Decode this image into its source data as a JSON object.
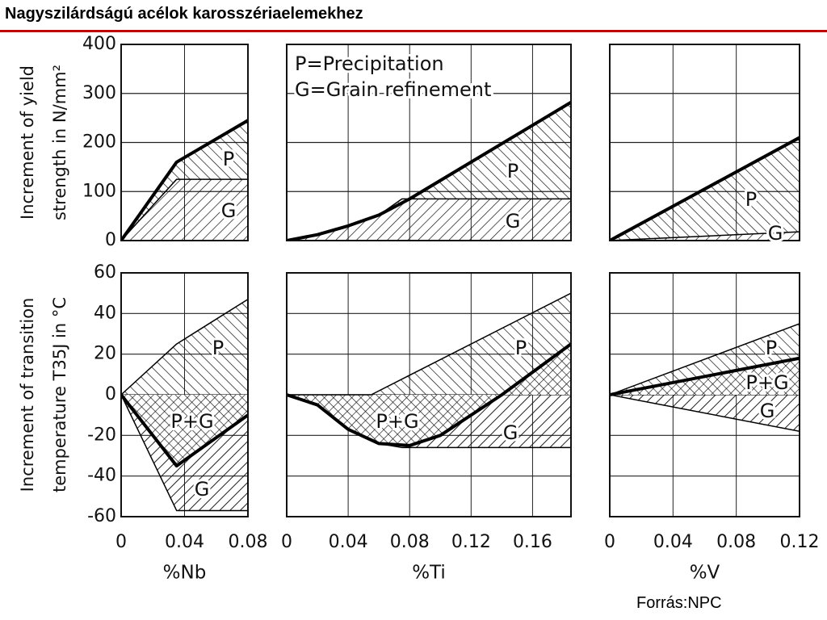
{
  "title": "Nagyszilárdságú acélok karosszériaelemekhez",
  "source": "Forrás:NPC",
  "chart_data": [
    {
      "type": "area",
      "ylabel": [
        "Increment of yield",
        "strength in N/mm²"
      ],
      "xlim": [
        0,
        0.08
      ],
      "xticks": [
        0,
        0.04,
        0.08
      ],
      "ylim": [
        0,
        400
      ],
      "yticks": [
        0,
        100,
        200,
        300,
        400
      ],
      "grid": true,
      "series": [
        {
          "x": [
            0,
            0.035,
            0.08
          ],
          "values": [
            0,
            160,
            245
          ],
          "color": "#000000",
          "line_width": 4,
          "hatch": "back"
        },
        {
          "x": [
            0,
            0.035,
            0.08
          ],
          "values": [
            0,
            125,
            125
          ],
          "color": "#000000",
          "line_width": 1.5,
          "hatch": "fwd"
        }
      ],
      "annotations": [
        "P",
        "G"
      ]
    },
    {
      "type": "area",
      "xlim": [
        0,
        0.185
      ],
      "xticks": [
        0,
        0.04,
        0.08,
        0.12,
        0.16
      ],
      "ylim": [
        0,
        400
      ],
      "yticks": [
        0,
        100,
        200,
        300,
        400
      ],
      "grid": true,
      "series": [
        {
          "x": [
            0,
            0.02,
            0.04,
            0.06,
            0.08,
            0.185
          ],
          "values": [
            0,
            12,
            30,
            52,
            85,
            282
          ],
          "color": "#000000",
          "line_width": 4,
          "hatch": "back"
        },
        {
          "x": [
            0,
            0.02,
            0.04,
            0.06,
            0.075,
            0.185
          ],
          "values": [
            0,
            12,
            30,
            52,
            85,
            85
          ],
          "color": "#000000",
          "line_width": 1.5,
          "hatch": "fwd"
        }
      ],
      "notes": [
        "P=Precipitation",
        "G=Grain refinement"
      ],
      "annotations": [
        "P",
        "G"
      ]
    },
    {
      "type": "area",
      "xlim": [
        0,
        0.12
      ],
      "xticks": [
        0,
        0.04,
        0.08,
        0.12
      ],
      "ylim": [
        0,
        400
      ],
      "yticks": [
        0,
        100,
        200,
        300,
        400
      ],
      "grid": true,
      "series": [
        {
          "x": [
            0,
            0.12
          ],
          "values": [
            0,
            210
          ],
          "color": "#000000",
          "line_width": 4,
          "hatch": "back"
        },
        {
          "x": [
            0,
            0.12
          ],
          "values": [
            0,
            18
          ],
          "color": "#000000",
          "line_width": 1.5,
          "hatch": "fwd"
        }
      ],
      "annotations": [
        "P",
        "G"
      ]
    },
    {
      "type": "area",
      "ylabel": [
        "Increment of transition",
        "temperature T35J in °C"
      ],
      "xlabel": "%Nb",
      "xlim": [
        0,
        0.08
      ],
      "xticks": [
        0,
        0.04,
        0.08
      ],
      "ylim": [
        -60,
        60
      ],
      "yticks": [
        -60,
        -40,
        -20,
        0,
        20,
        40,
        60
      ],
      "grid": true,
      "series": [
        {
          "x": [
            0,
            0.035,
            0.08
          ],
          "values": [
            0,
            25,
            47
          ],
          "color": "#000000",
          "line_width": 1.5,
          "hatch": "back"
        },
        {
          "x": [
            0,
            0.035,
            0.08
          ],
          "values": [
            0,
            -35,
            -10
          ],
          "color": "#000000",
          "line_width": 4,
          "hatch": "fwd",
          "crosshatch": true
        },
        {
          "x": [
            0,
            0.035,
            0.08
          ],
          "values": [
            0,
            -57,
            -57
          ],
          "color": "#000000",
          "line_width": 1.5,
          "hatch": "fwd"
        }
      ],
      "annotations": [
        "P",
        "P+G",
        "G"
      ]
    },
    {
      "type": "area",
      "xlabel": "%Ti",
      "xlim": [
        0,
        0.185
      ],
      "xticks": [
        0,
        0.04,
        0.08,
        0.12,
        0.16
      ],
      "ylim": [
        -60,
        60
      ],
      "yticks": [
        -60,
        -40,
        -20,
        0,
        20,
        40,
        60
      ],
      "grid": true,
      "series": [
        {
          "x": [
            0,
            0.055,
            0.185
          ],
          "values": [
            0,
            0,
            50
          ],
          "color": "#000000",
          "line_width": 1.5,
          "hatch": "back"
        },
        {
          "x": [
            0,
            0.02,
            0.04,
            0.06,
            0.08,
            0.1,
            0.14,
            0.185
          ],
          "values": [
            0,
            -5,
            -17,
            -24,
            -25,
            -20,
            0,
            25
          ],
          "color": "#000000",
          "line_width": 4,
          "hatch": "fwd",
          "crosshatch": true
        },
        {
          "x": [
            0,
            0.02,
            0.04,
            0.06,
            0.075,
            0.185
          ],
          "values": [
            0,
            -5,
            -17,
            -24,
            -26,
            -26
          ],
          "color": "#000000",
          "line_width": 1.5,
          "hatch": "fwd"
        }
      ],
      "annotations": [
        "P",
        "P+G",
        "G"
      ]
    },
    {
      "type": "area",
      "xlabel": "%V",
      "xlim": [
        0,
        0.12
      ],
      "xticks": [
        0,
        0.04,
        0.08,
        0.12
      ],
      "ylim": [
        -60,
        60
      ],
      "yticks": [
        -60,
        -40,
        -20,
        0,
        20,
        40,
        60
      ],
      "grid": true,
      "series": [
        {
          "x": [
            0,
            0.12
          ],
          "values": [
            0,
            35
          ],
          "color": "#000000",
          "line_width": 1.5,
          "hatch": "back"
        },
        {
          "x": [
            0,
            0.12
          ],
          "values": [
            0,
            18
          ],
          "color": "#000000",
          "line_width": 4,
          "hatch": "fwd",
          "crosshatch": true
        },
        {
          "x": [
            0,
            0.12
          ],
          "values": [
            0,
            -18
          ],
          "color": "#000000",
          "line_width": 1.5,
          "hatch": "fwd"
        }
      ],
      "annotations": [
        "P",
        "P+G",
        "G"
      ]
    }
  ]
}
